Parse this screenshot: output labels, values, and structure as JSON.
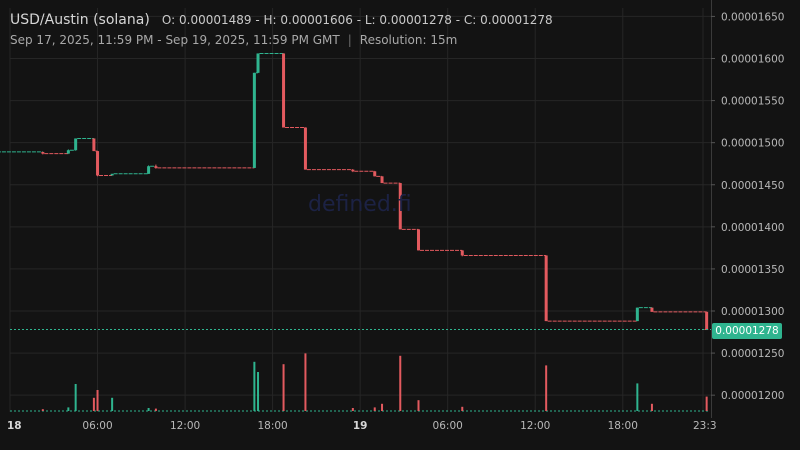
{
  "header": {
    "pair": "USD/Austin (solana)",
    "ohlc": "O: 0.00001489 - H: 0.00001606 - L: 0.00001278 - C: 0.00001278",
    "range": "Sep 17, 2025, 11:59 PM - Sep 19, 2025, 11:59 PM GMT",
    "separator": "|",
    "resolution": "Resolution: 15m"
  },
  "watermark": "defined.fi",
  "last_price": "0.00001278",
  "colors": {
    "background": "#131313",
    "up": "#2fb48f",
    "down": "#e35a5f",
    "grid": "#262626",
    "text": "#b8b8b8"
  },
  "chart_data": {
    "type": "candlestick",
    "title": "USD/Austin (solana)",
    "xlabel": "",
    "ylabel": "",
    "ylim": [
      1.18e-05,
      1.66e-05
    ],
    "grid": true,
    "x_tick_labels": [
      "18",
      "06:00",
      "12:00",
      "18:00",
      "19",
      "06:00",
      "12:00",
      "18:00",
      "23:3"
    ],
    "x_tick_hours": [
      0,
      6,
      12,
      18,
      24,
      30,
      36,
      42,
      47.5
    ],
    "y_tick_labels": [
      "0.00001200",
      "0.00001250",
      "0.00001300",
      "0.00001350",
      "0.00001400",
      "0.00001450",
      "0.00001500",
      "0.00001550",
      "0.00001600",
      "0.00001650"
    ],
    "y_tick_values": [
      1.2e-05,
      1.25e-05,
      1.3e-05,
      1.35e-05,
      1.4e-05,
      1.45e-05,
      1.5e-05,
      1.55e-05,
      1.6e-05,
      1.65e-05
    ],
    "last_price": 1.278e-05,
    "ohlc": [
      {
        "t": -1.0,
        "o": 1.489e-05,
        "h": 1.489e-05,
        "l": 1.489e-05,
        "c": 1.489e-05,
        "v": 0.02
      },
      {
        "t": 2.25,
        "o": 1.489e-05,
        "h": 1.489e-05,
        "l": 1.486e-05,
        "c": 1.487e-05,
        "v": 0.03
      },
      {
        "t": 4.0,
        "o": 1.487e-05,
        "h": 1.492e-05,
        "l": 1.487e-05,
        "c": 1.491e-05,
        "v": 0.06
      },
      {
        "t": 4.5,
        "o": 1.491e-05,
        "h": 1.505e-05,
        "l": 1.491e-05,
        "c": 1.505e-05,
        "v": 0.45
      },
      {
        "t": 5.75,
        "o": 1.505e-05,
        "h": 1.505e-05,
        "l": 1.49e-05,
        "c": 1.49e-05,
        "v": 0.22
      },
      {
        "t": 6.0,
        "o": 1.49e-05,
        "h": 1.49e-05,
        "l": 1.46e-05,
        "c": 1.461e-05,
        "v": 0.35
      },
      {
        "t": 7.0,
        "o": 1.461e-05,
        "h": 1.463e-05,
        "l": 1.461e-05,
        "c": 1.463e-05,
        "v": 0.22
      },
      {
        "t": 9.5,
        "o": 1.463e-05,
        "h": 1.473e-05,
        "l": 1.463e-05,
        "c": 1.472e-05,
        "v": 0.05
      },
      {
        "t": 10.0,
        "o": 1.472e-05,
        "h": 1.474e-05,
        "l": 1.469e-05,
        "c": 1.47e-05,
        "v": 0.04
      },
      {
        "t": 16.75,
        "o": 1.47e-05,
        "h": 1.583e-05,
        "l": 1.47e-05,
        "c": 1.583e-05,
        "v": 0.82
      },
      {
        "t": 17.0,
        "o": 1.583e-05,
        "h": 1.606e-05,
        "l": 1.583e-05,
        "c": 1.606e-05,
        "v": 0.65
      },
      {
        "t": 18.75,
        "o": 1.606e-05,
        "h": 1.606e-05,
        "l": 1.518e-05,
        "c": 1.518e-05,
        "v": 0.78
      },
      {
        "t": 20.25,
        "o": 1.518e-05,
        "h": 1.518e-05,
        "l": 1.468e-05,
        "c": 1.468e-05,
        "v": 0.96
      },
      {
        "t": 23.5,
        "o": 1.468e-05,
        "h": 1.468e-05,
        "l": 1.465e-05,
        "c": 1.466e-05,
        "v": 0.05
      },
      {
        "t": 25.0,
        "o": 1.466e-05,
        "h": 1.466e-05,
        "l": 1.46e-05,
        "c": 1.46e-05,
        "v": 0.06
      },
      {
        "t": 25.5,
        "o": 1.46e-05,
        "h": 1.46e-05,
        "l": 1.452e-05,
        "c": 1.452e-05,
        "v": 0.12
      },
      {
        "t": 26.75,
        "o": 1.452e-05,
        "h": 1.452e-05,
        "l": 1.397e-05,
        "c": 1.397e-05,
        "v": 0.92
      },
      {
        "t": 28.0,
        "o": 1.397e-05,
        "h": 1.397e-05,
        "l": 1.372e-05,
        "c": 1.372e-05,
        "v": 0.18
      },
      {
        "t": 31.0,
        "o": 1.372e-05,
        "h": 1.372e-05,
        "l": 1.365e-05,
        "c": 1.366e-05,
        "v": 0.07
      },
      {
        "t": 36.75,
        "o": 1.366e-05,
        "h": 1.366e-05,
        "l": 1.288e-05,
        "c": 1.288e-05,
        "v": 0.76
      },
      {
        "t": 43.0,
        "o": 1.288e-05,
        "h": 1.304e-05,
        "l": 1.288e-05,
        "c": 1.304e-05,
        "v": 0.46
      },
      {
        "t": 44.0,
        "o": 1.304e-05,
        "h": 1.304e-05,
        "l": 1.299e-05,
        "c": 1.299e-05,
        "v": 0.12
      },
      {
        "t": 47.75,
        "o": 1.299e-05,
        "h": 1.299e-05,
        "l": 1.278e-05,
        "c": 1.278e-05,
        "v": 0.24
      }
    ]
  }
}
